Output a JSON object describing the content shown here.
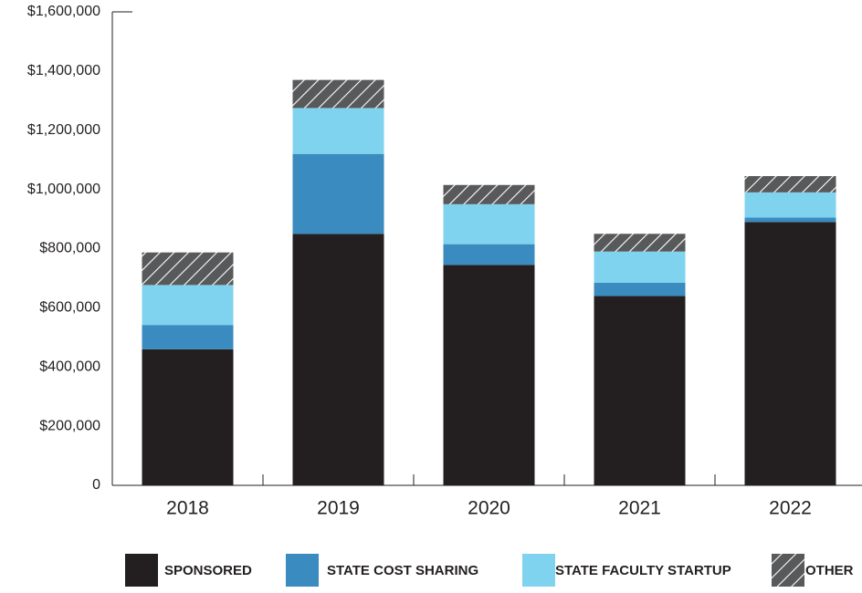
{
  "chart_data": {
    "type": "stacked_bar",
    "categories": [
      "2018",
      "2019",
      "2020",
      "2021",
      "2022"
    ],
    "series": [
      {
        "name": "SPONSORED",
        "color": "#231f20",
        "values": [
          460000,
          850000,
          745000,
          640000,
          890000
        ]
      },
      {
        "name": "STATE COST SHARING",
        "color": "#3a8bbf",
        "values": [
          82000,
          270000,
          70000,
          45000,
          15000
        ]
      },
      {
        "name": "STATE FACULTY STARTUP",
        "color": "#7fd3ee",
        "values": [
          135000,
          155000,
          135000,
          105000,
          85000
        ]
      },
      {
        "name": "OTHER",
        "color": "#58595b",
        "hatch": true,
        "values": [
          110000,
          95000,
          65000,
          60000,
          55000
        ]
      }
    ],
    "ylim": [
      0,
      1600000
    ],
    "yticks": [
      0,
      {
        "value": 200000,
        "label": "$200,000"
      },
      {
        "value": 400000,
        "label": "$400,000"
      },
      {
        "value": 600000,
        "label": "$600,000"
      },
      {
        "value": 800000,
        "label": "$800,000"
      },
      {
        "value": 1000000,
        "label": "$1,000,000"
      },
      {
        "value": 1200000,
        "label": "$1,200,000"
      },
      {
        "value": 1400000,
        "label": "$1,400,000"
      },
      {
        "value": 1600000,
        "label": "$1,600,000"
      }
    ],
    "legend": "bottom"
  }
}
